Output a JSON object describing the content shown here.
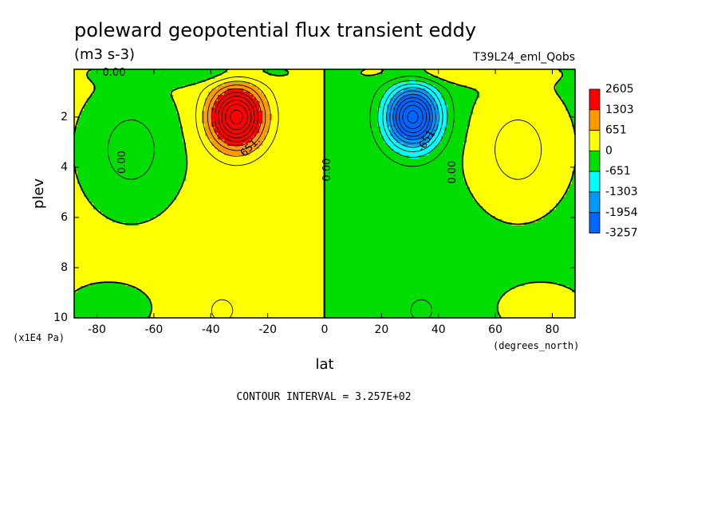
{
  "chart_data": {
    "type": "contour",
    "title": "poleward geopotential flux transient eddy",
    "units": "(m3 s-3)",
    "run_label": "T39L24_eml_Qobs",
    "xlabel": "lat",
    "x_units": "(degrees_north)",
    "ylabel": "plev",
    "y_units": "(x1E4 Pa)",
    "xlim": [
      -88,
      88
    ],
    "ylim": [
      10,
      0.1
    ],
    "x_ticks": [
      -80,
      -60,
      -40,
      -20,
      0,
      20,
      40,
      60,
      80
    ],
    "y_ticks": [
      2,
      4,
      6,
      8,
      10
    ],
    "x_tick_labels": [
      "-80",
      "-60",
      "-40",
      "-20",
      "0",
      "20",
      "40",
      "60",
      "80"
    ],
    "y_tick_labels": [
      "2",
      "4",
      "6",
      "8",
      "10"
    ],
    "contour_interval_text": "CONTOUR INTERVAL = 3.257E+02",
    "contour_labels": [
      {
        "text": "0.00",
        "lat": -74,
        "plev": 0.25,
        "angle": 0
      },
      {
        "text": "0.00",
        "lat": -71,
        "plev": 3.8,
        "angle": -90
      },
      {
        "text": "651.",
        "lat": -26,
        "plev": 3.2,
        "angle": -45
      },
      {
        "text": "0.00",
        "lat": 1,
        "plev": 4.1,
        "angle": -90
      },
      {
        "text": "-651.",
        "lat": 36,
        "plev": 2.9,
        "angle": -60
      },
      {
        "text": "0.00",
        "lat": 45,
        "plev": 4.2,
        "angle": -90
      }
    ],
    "colorbar": {
      "labels": [
        "2605",
        "1303",
        "651",
        "0",
        "-651",
        "-1303",
        "-1954",
        "-3257"
      ],
      "colors": [
        "#ff0000",
        "#ff9900",
        "#ffff00",
        "#00dd00",
        "#00ffff",
        "#0099ff",
        "#0066ff"
      ]
    },
    "field": {
      "background_value": 100,
      "base_north_sign": -1,
      "features": [
        {
          "lat": -31,
          "plev": 2.0,
          "amp": 3000,
          "sigma_lat": 6.5,
          "sigma_plev": 0.85
        },
        {
          "lat": 31,
          "plev": 2.0,
          "amp": -3300,
          "sigma_lat": 6.5,
          "sigma_plev": 0.85
        },
        {
          "lat": -68,
          "plev": 3.3,
          "amp": -560,
          "sigma_lat": 11,
          "sigma_plev": 1.6
        },
        {
          "lat": 68,
          "plev": 3.3,
          "amp": 560,
          "sigma_lat": 11,
          "sigma_plev": 1.6
        },
        {
          "lat": -76,
          "plev": 9.6,
          "amp": -420,
          "sigma_lat": 9,
          "sigma_plev": 0.6
        },
        {
          "lat": 76,
          "plev": 9.6,
          "amp": 420,
          "sigma_lat": 9,
          "sigma_plev": 0.6
        },
        {
          "lat": -45,
          "plev": 0.25,
          "amp": -420,
          "sigma_lat": 20,
          "sigma_plev": 0.3
        },
        {
          "lat": 45,
          "plev": 0.25,
          "amp": 420,
          "sigma_lat": 20,
          "sigma_plev": 0.3
        },
        {
          "lat": -36,
          "plev": 9.7,
          "amp": 260,
          "sigma_lat": 7,
          "sigma_plev": 0.8
        },
        {
          "lat": 34,
          "plev": 9.7,
          "amp": -260,
          "sigma_lat": 7,
          "sigma_plev": 0.8
        }
      ]
    }
  }
}
